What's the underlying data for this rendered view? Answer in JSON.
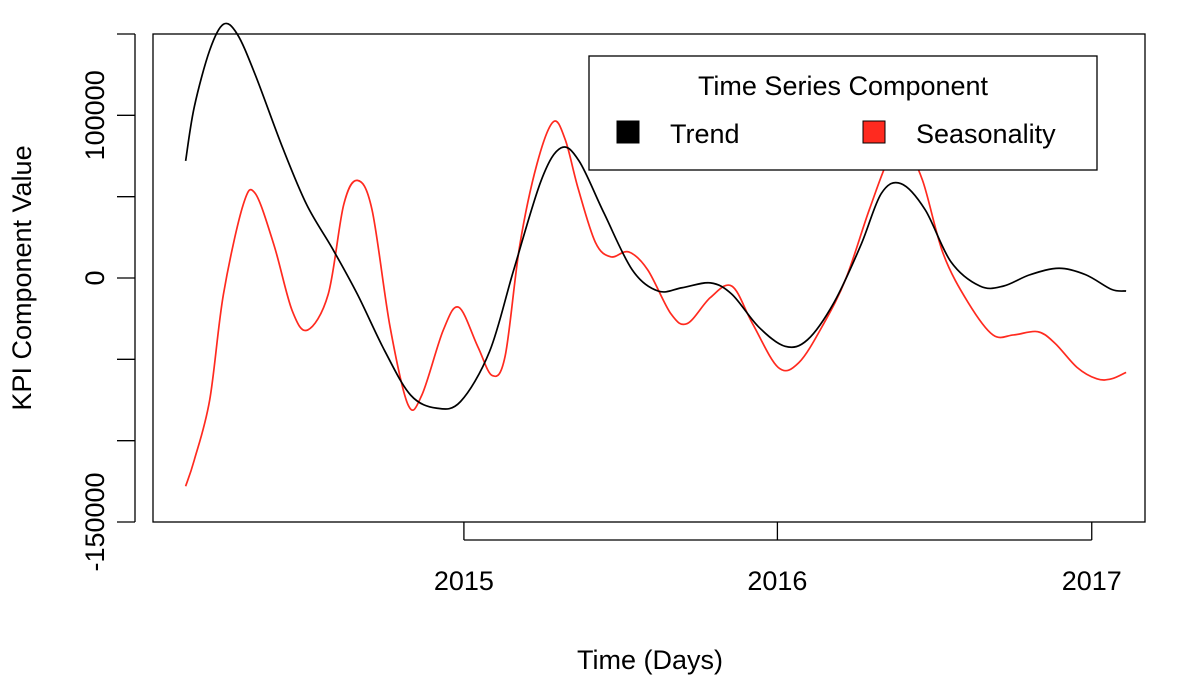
{
  "chart_data": {
    "type": "line",
    "title": "",
    "xlabel": "Time (Days)",
    "ylabel": "KPI Component Value",
    "xlim": [
      "2014-01-04",
      "2017-03-04"
    ],
    "ylim": [
      -150000,
      150000
    ],
    "x_ticks": [
      {
        "date": "2015-01-01",
        "label": "2015"
      },
      {
        "date": "2016-01-01",
        "label": "2016"
      },
      {
        "date": "2017-01-01",
        "label": "2017"
      }
    ],
    "y_ticks": [
      {
        "value": -150000,
        "label": "-150000"
      },
      {
        "value": -100000,
        "label": ""
      },
      {
        "value": -50000,
        "label": ""
      },
      {
        "value": 0,
        "label": "0"
      },
      {
        "value": 50000,
        "label": ""
      },
      {
        "value": 100000,
        "label": "100000"
      },
      {
        "value": 150000,
        "label": ""
      }
    ],
    "legend": {
      "title": "Time Series Component",
      "position": "top-right"
    },
    "grid": false,
    "series": [
      {
        "name": "Trend",
        "color": "#000000",
        "points": [
          [
            "2014-02-11",
            72000
          ],
          [
            "2014-02-21",
            105000
          ],
          [
            "2014-03-11",
            140000
          ],
          [
            "2014-03-27",
            156000
          ],
          [
            "2014-04-12",
            150000
          ],
          [
            "2014-05-03",
            125000
          ],
          [
            "2014-06-04",
            80000
          ],
          [
            "2014-07-02",
            45000
          ],
          [
            "2014-08-01",
            18000
          ],
          [
            "2014-08-30",
            -10000
          ],
          [
            "2014-10-01",
            -45000
          ],
          [
            "2014-10-31",
            -72000
          ],
          [
            "2014-11-30",
            -80000
          ],
          [
            "2014-12-28",
            -76000
          ],
          [
            "2015-01-31",
            -45000
          ],
          [
            "2015-02-28",
            5000
          ],
          [
            "2015-04-01",
            60000
          ],
          [
            "2015-04-24",
            80000
          ],
          [
            "2015-05-15",
            72000
          ],
          [
            "2015-06-13",
            40000
          ],
          [
            "2015-07-16",
            5000
          ],
          [
            "2015-08-15",
            -8000
          ],
          [
            "2015-09-12",
            -6000
          ],
          [
            "2015-10-15",
            -3000
          ],
          [
            "2015-11-09",
            -10000
          ],
          [
            "2015-12-10",
            -30000
          ],
          [
            "2016-01-10",
            -42000
          ],
          [
            "2016-02-05",
            -38000
          ],
          [
            "2016-03-07",
            -15000
          ],
          [
            "2016-04-07",
            20000
          ],
          [
            "2016-05-01",
            52000
          ],
          [
            "2016-05-24",
            58000
          ],
          [
            "2016-06-21",
            42000
          ],
          [
            "2016-07-21",
            10000
          ],
          [
            "2016-08-24",
            -5000
          ],
          [
            "2016-09-20",
            -5000
          ],
          [
            "2016-10-21",
            2000
          ],
          [
            "2016-11-24",
            6000
          ],
          [
            "2016-12-25",
            2000
          ],
          [
            "2017-01-24",
            -7000
          ],
          [
            "2017-02-10",
            -8000
          ]
        ]
      },
      {
        "name": "Seasonality",
        "color": "#ff2a1f",
        "points": [
          [
            "2014-02-11",
            -128000
          ],
          [
            "2014-02-21",
            -112000
          ],
          [
            "2014-03-11",
            -75000
          ],
          [
            "2014-03-27",
            -10000
          ],
          [
            "2014-04-19",
            45000
          ],
          [
            "2014-05-03",
            52000
          ],
          [
            "2014-05-25",
            20000
          ],
          [
            "2014-06-15",
            -20000
          ],
          [
            "2014-07-03",
            -32000
          ],
          [
            "2014-07-27",
            -10000
          ],
          [
            "2014-08-14",
            45000
          ],
          [
            "2014-08-30",
            60000
          ],
          [
            "2014-09-16",
            42000
          ],
          [
            "2014-10-07",
            -30000
          ],
          [
            "2014-10-28",
            -78000
          ],
          [
            "2014-11-13",
            -72000
          ],
          [
            "2014-12-08",
            -32000
          ],
          [
            "2014-12-26",
            -18000
          ],
          [
            "2015-01-17",
            -42000
          ],
          [
            "2015-02-03",
            -60000
          ],
          [
            "2015-02-18",
            -48000
          ],
          [
            "2015-03-07",
            20000
          ],
          [
            "2015-03-27",
            70000
          ],
          [
            "2015-04-15",
            96000
          ],
          [
            "2015-04-29",
            85000
          ],
          [
            "2015-05-14",
            55000
          ],
          [
            "2015-06-03",
            22000
          ],
          [
            "2015-06-21",
            13000
          ],
          [
            "2015-07-12",
            16000
          ],
          [
            "2015-08-03",
            5000
          ],
          [
            "2015-08-30",
            -22000
          ],
          [
            "2015-09-18",
            -28000
          ],
          [
            "2015-10-15",
            -12000
          ],
          [
            "2015-11-09",
            -5000
          ],
          [
            "2015-12-03",
            -28000
          ],
          [
            "2016-01-02",
            -55000
          ],
          [
            "2016-01-26",
            -52000
          ],
          [
            "2016-02-24",
            -28000
          ],
          [
            "2016-03-21",
            0
          ],
          [
            "2016-04-17",
            42000
          ],
          [
            "2016-05-12",
            76000
          ],
          [
            "2016-05-29",
            80000
          ],
          [
            "2016-06-18",
            60000
          ],
          [
            "2016-07-12",
            15000
          ],
          [
            "2016-08-10",
            -15000
          ],
          [
            "2016-09-08",
            -35000
          ],
          [
            "2016-10-02",
            -35000
          ],
          [
            "2016-10-30",
            -33000
          ],
          [
            "2016-11-19",
            -40000
          ],
          [
            "2016-12-15",
            -55000
          ],
          [
            "2017-01-07",
            -62000
          ],
          [
            "2017-01-24",
            -62000
          ],
          [
            "2017-02-10",
            -58000
          ]
        ]
      }
    ]
  }
}
